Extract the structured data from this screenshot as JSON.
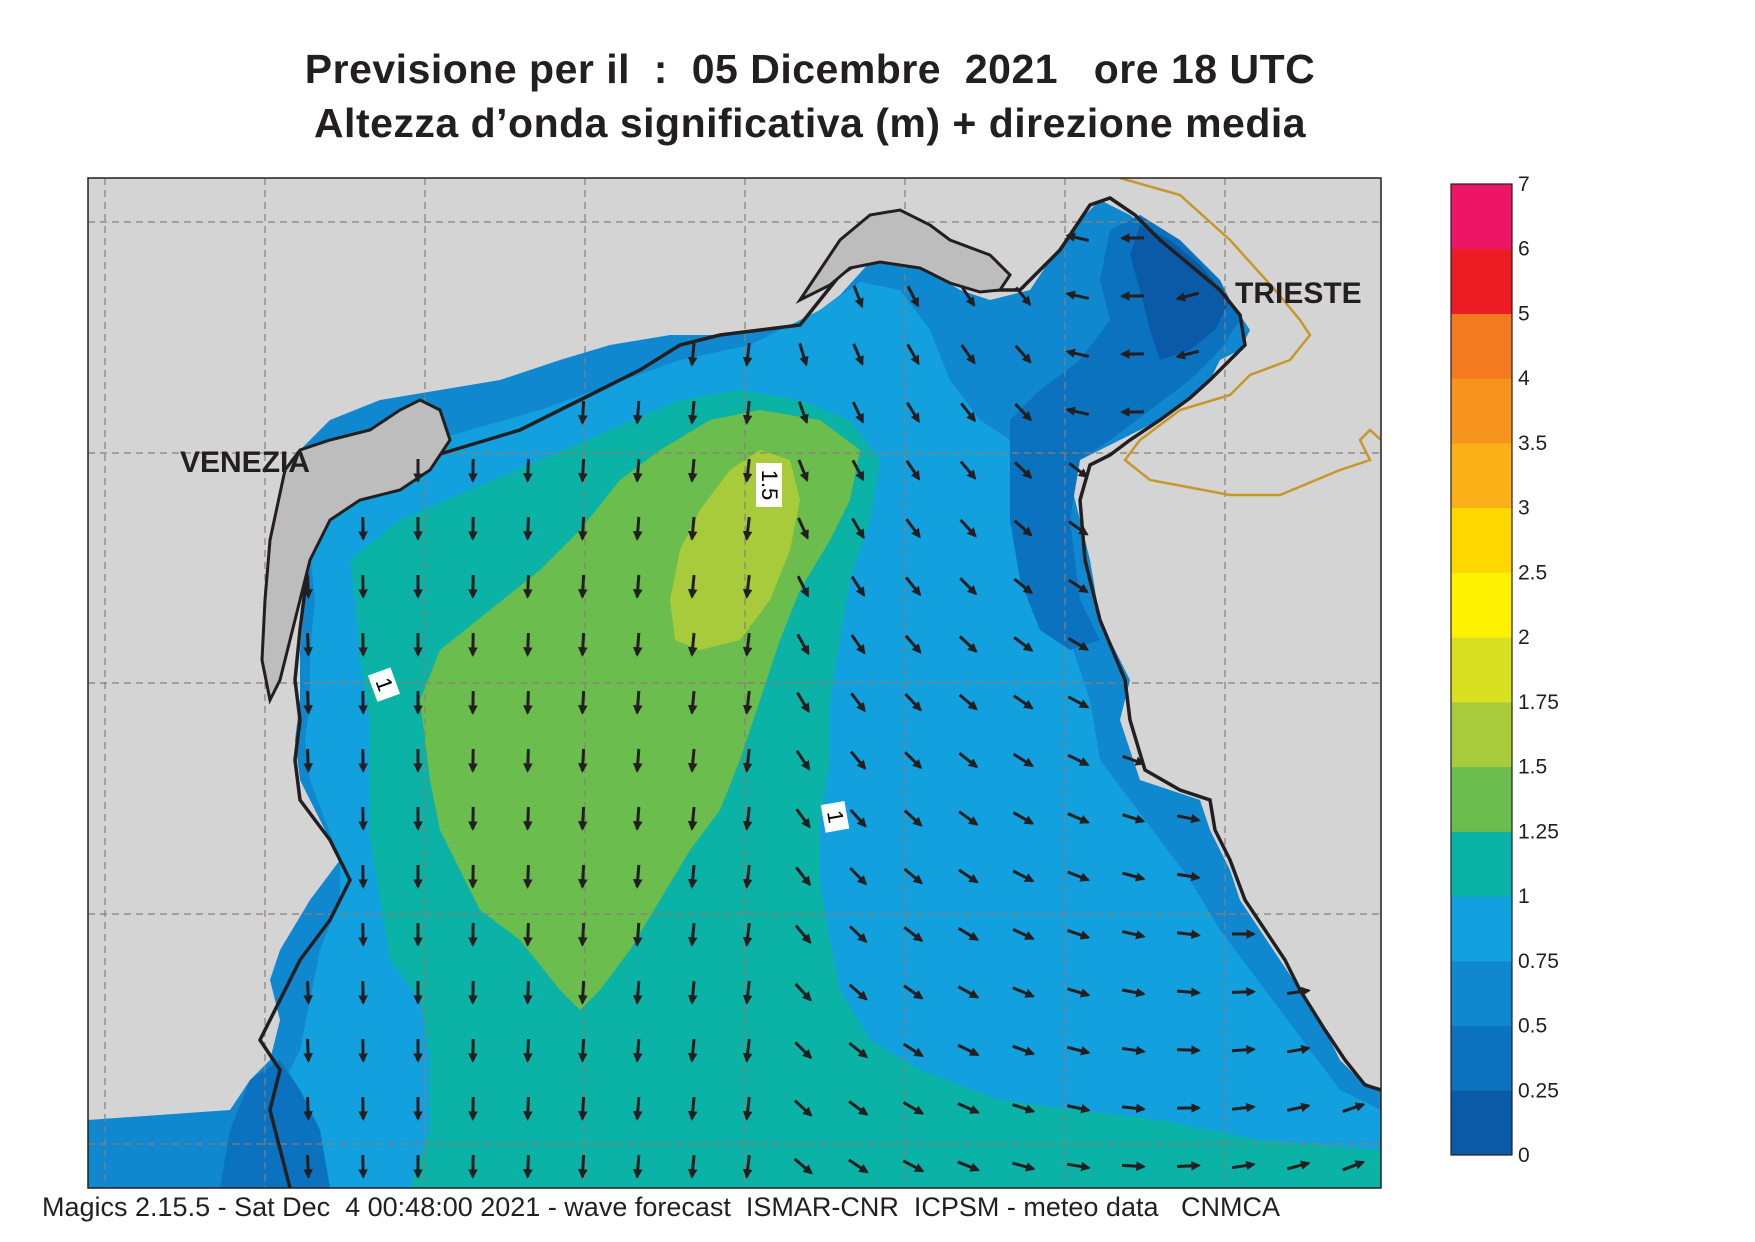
{
  "title": {
    "line1_prefix": "Previsione per il  :  ",
    "date": "05 Dicembre  2021",
    "time": "   ore 18 UTC",
    "line2": "Altezza d’onda significativa (m) + direzione media"
  },
  "places": [
    {
      "id": "venezia",
      "label": "VENEZIA"
    },
    {
      "id": "trieste",
      "label": "TRIESTE"
    }
  ],
  "contour_labels": [
    "1.5",
    "1",
    "1"
  ],
  "colorbar": {
    "levels": [
      "0",
      "0.25",
      "0.5",
      "0.75",
      "1",
      "1.25",
      "1.5",
      "1.75",
      "2",
      "2.5",
      "3",
      "3.5",
      "4",
      "5",
      "6",
      "7"
    ],
    "colors": [
      "#0a5aa8",
      "#0a72be",
      "#1088cf",
      "#12a0de",
      "#0bb2a6",
      "#6bbd4e",
      "#a8cb3b",
      "#d8e022",
      "#fff200",
      "#ffd800",
      "#fbb017",
      "#f7941d",
      "#f47a20",
      "#ed1c24",
      "#ec1665"
    ]
  },
  "colors": {
    "land": "#d4d4d4",
    "coast": "#231f20",
    "border": "#c8972a",
    "grid": "#8a7f75",
    "arrow": "#231f20"
  },
  "footer": "Magics 2.15.5 - Sat Dec  4 00:48:00 2021 - wave forecast  ISMAR-CNR  ICPSM - meteo data   CNMCA"
}
